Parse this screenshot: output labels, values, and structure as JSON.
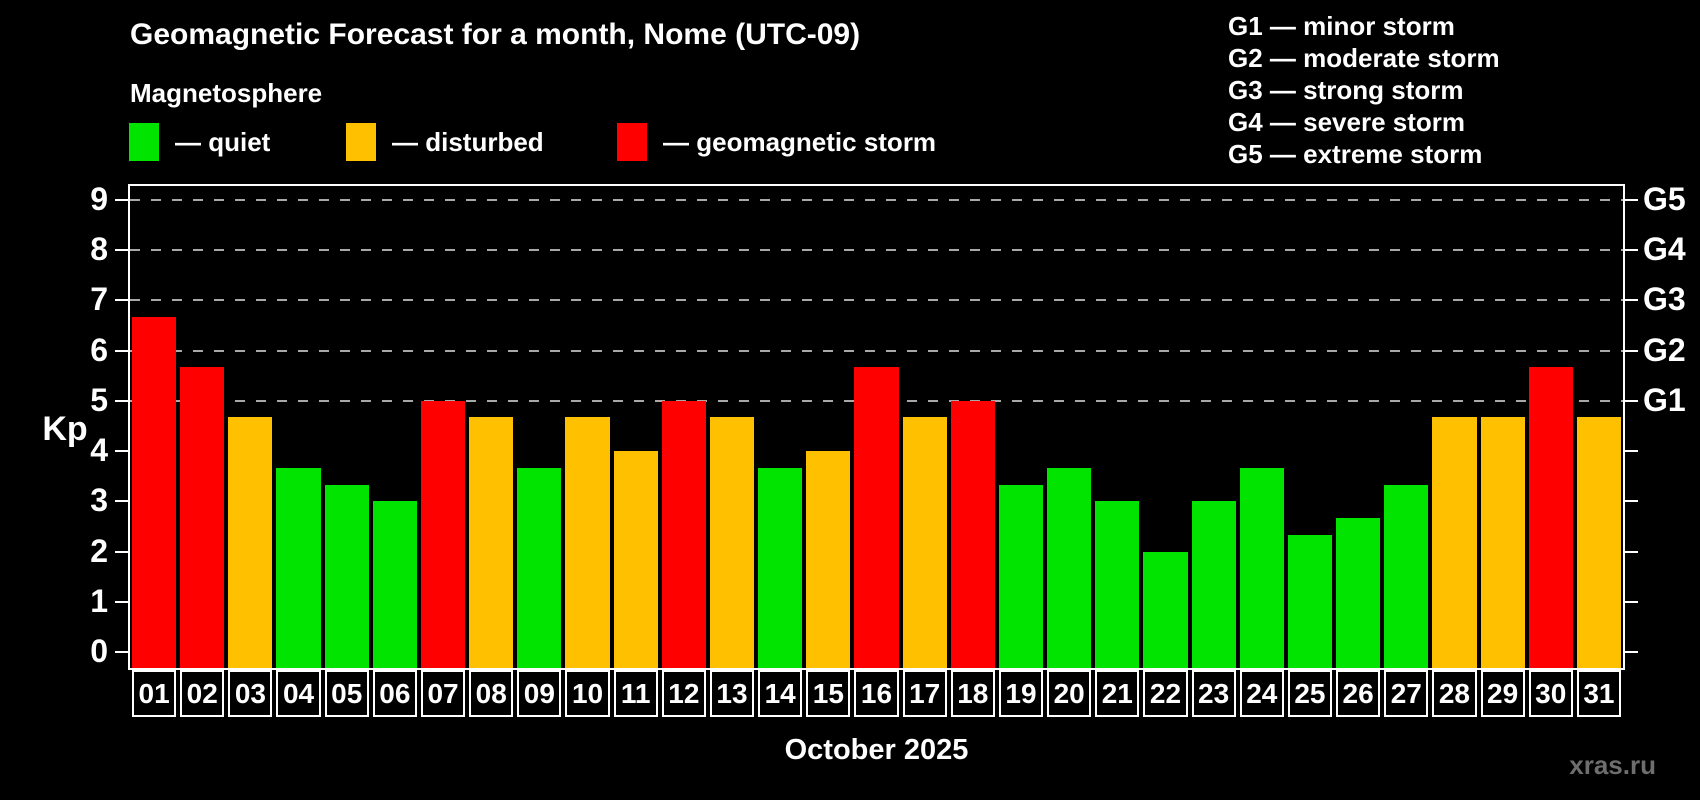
{
  "title": "Geomagnetic Forecast for a month, Nome (UTC-09)",
  "subtitle": "Magnetosphere",
  "legend": {
    "quiet_label": "— quiet",
    "disturbed_label": "— disturbed",
    "storm_label": "— geomagnetic storm"
  },
  "g_legend": {
    "line1": "G1 — minor storm",
    "line2": "G2 — moderate storm",
    "line3": "G3 — strong storm",
    "line4": "G4 — severe storm",
    "line5": "G5 — extreme storm"
  },
  "axis": {
    "y_label": "Kp",
    "x_label": "October 2025"
  },
  "watermark": "xras.ru",
  "colors": {
    "background": "#000000",
    "text": "#ffffff",
    "gridline": "#a8a8a8",
    "watermark": "#6e6e6e",
    "quiet": "#00e400",
    "disturbed": "#ffc000",
    "storm": "#ff0000"
  },
  "chart_data": {
    "type": "bar",
    "title": "Geomagnetic Forecast for a month, Nome (UTC-09)",
    "xlabel": "October 2025",
    "ylabel": "Kp",
    "ylim": [
      0,
      9
    ],
    "y_ticks": [
      0,
      1,
      2,
      3,
      4,
      5,
      6,
      7,
      8,
      9
    ],
    "grid_levels": [
      5,
      6,
      7,
      8,
      9
    ],
    "grid": "horizontal dashed at storm levels, both-side ticks at every integer",
    "legend_position": "top",
    "right_axis_labels": [
      {
        "kp": 5,
        "label": "G1"
      },
      {
        "kp": 6,
        "label": "G2"
      },
      {
        "kp": 7,
        "label": "G3"
      },
      {
        "kp": 8,
        "label": "G4"
      },
      {
        "kp": 9,
        "label": "G5"
      }
    ],
    "categories": [
      "01",
      "02",
      "03",
      "04",
      "05",
      "06",
      "07",
      "08",
      "09",
      "10",
      "11",
      "12",
      "13",
      "14",
      "15",
      "16",
      "17",
      "18",
      "19",
      "20",
      "21",
      "22",
      "23",
      "24",
      "25",
      "26",
      "27",
      "28",
      "29",
      "30",
      "31"
    ],
    "values": [
      6.67,
      5.67,
      4.67,
      3.67,
      3.33,
      3.0,
      5.0,
      4.67,
      3.67,
      4.67,
      4.0,
      5.0,
      4.67,
      3.67,
      4.0,
      5.67,
      4.67,
      5.0,
      3.33,
      3.67,
      3.0,
      2.0,
      3.0,
      3.67,
      2.33,
      2.67,
      3.33,
      4.67,
      4.67,
      5.67,
      4.67
    ],
    "status": [
      "storm",
      "storm",
      "disturbed",
      "quiet",
      "quiet",
      "quiet",
      "storm",
      "disturbed",
      "quiet",
      "disturbed",
      "disturbed",
      "storm",
      "disturbed",
      "quiet",
      "disturbed",
      "storm",
      "disturbed",
      "storm",
      "quiet",
      "quiet",
      "quiet",
      "quiet",
      "quiet",
      "quiet",
      "quiet",
      "quiet",
      "quiet",
      "disturbed",
      "disturbed",
      "storm",
      "disturbed"
    ]
  }
}
